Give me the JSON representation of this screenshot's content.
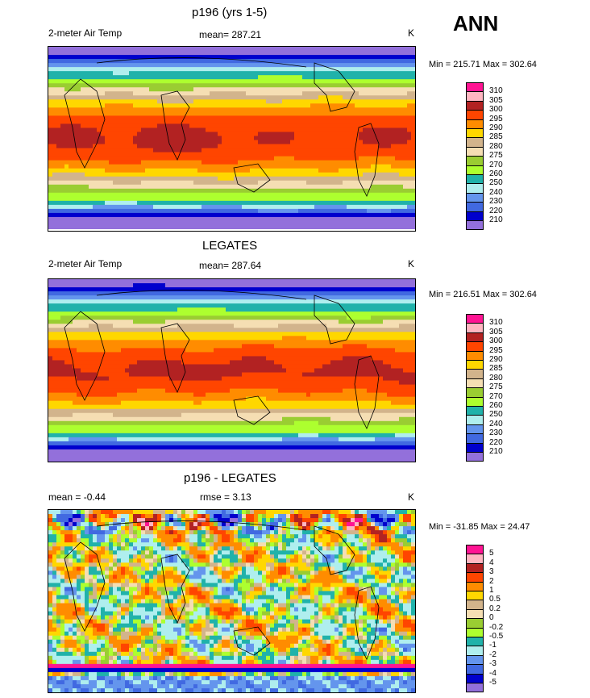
{
  "season": "ANN",
  "panels": [
    {
      "title": "p196 (yrs 1-5)",
      "left_label": "2-meter Air Temp",
      "center_label": "mean= 287.21",
      "unit": "K",
      "minmax": "Min = 215.71 Max = 302.64",
      "kind": "temp"
    },
    {
      "title": "LEGATES",
      "left_label": "2-meter Air Temp",
      "center_label": "mean= 287.64",
      "unit": "K",
      "minmax": "Min = 216.51 Max = 302.64",
      "kind": "temp"
    },
    {
      "title": "p196 - LEGATES",
      "left_label": "mean =  -0.44",
      "center_label": "rmse =   3.13",
      "unit": "K",
      "minmax": "Min = -31.85 Max =  24.47",
      "kind": "diff"
    }
  ],
  "chart_data": [
    {
      "type": "heatmap",
      "title": "p196 (yrs 1-5)",
      "variable": "2-meter Air Temp",
      "units": "K",
      "mean": 287.21,
      "min": 215.71,
      "max": 302.64,
      "colorbar_levels": [
        "310",
        "305",
        "300",
        "295",
        "290",
        "285",
        "280",
        "275",
        "270",
        "260",
        "250",
        "240",
        "230",
        "220",
        "210"
      ],
      "colorbar_colors": [
        "#ff1493",
        "#ffb6c1",
        "#b22222",
        "#ff4500",
        "#ff8c00",
        "#ffd700",
        "#d2b48c",
        "#f5deb3",
        "#9acd32",
        "#adff2f",
        "#20b2aa",
        "#afeeee",
        "#6495ed",
        "#4169e1",
        "#0000cd",
        "#9370db"
      ]
    },
    {
      "type": "heatmap",
      "title": "LEGATES",
      "variable": "2-meter Air Temp",
      "units": "K",
      "mean": 287.64,
      "min": 216.51,
      "max": 302.64,
      "colorbar_levels": [
        "310",
        "305",
        "300",
        "295",
        "290",
        "285",
        "280",
        "275",
        "270",
        "260",
        "250",
        "240",
        "230",
        "220",
        "210"
      ],
      "colorbar_colors": [
        "#ff1493",
        "#ffb6c1",
        "#b22222",
        "#ff4500",
        "#ff8c00",
        "#ffd700",
        "#d2b48c",
        "#f5deb3",
        "#9acd32",
        "#adff2f",
        "#20b2aa",
        "#afeeee",
        "#6495ed",
        "#4169e1",
        "#0000cd",
        "#9370db"
      ]
    },
    {
      "type": "heatmap",
      "title": "p196 - LEGATES",
      "units": "K",
      "mean": -0.44,
      "rmse": 3.13,
      "min": -31.85,
      "max": 24.47,
      "colorbar_levels": [
        "5",
        "4",
        "3",
        "2",
        "1",
        "0.5",
        "0.2",
        "0",
        "-0.2",
        "-0.5",
        "-1",
        "-2",
        "-3",
        "-4",
        "-5"
      ],
      "colorbar_colors": [
        "#ff1493",
        "#ffb6c1",
        "#b22222",
        "#ff4500",
        "#ff8c00",
        "#ffd700",
        "#d2b48c",
        "#f5deb3",
        "#9acd32",
        "#adff2f",
        "#20b2aa",
        "#afeeee",
        "#6495ed",
        "#4169e1",
        "#0000cd",
        "#9370db"
      ]
    }
  ]
}
